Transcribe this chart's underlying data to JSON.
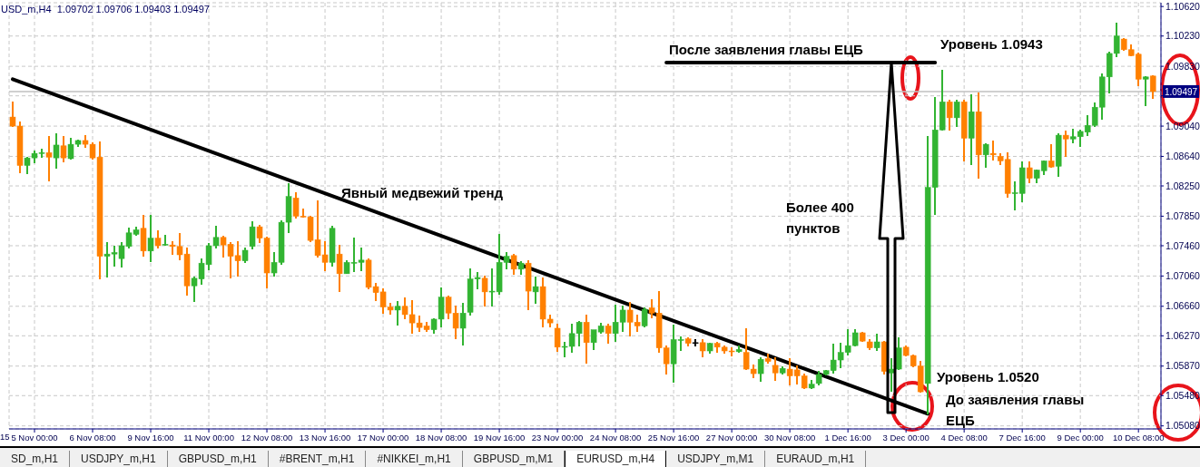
{
  "chart_data": {
    "type": "candlestick",
    "title": "USD_m,H4  1.09702 1.09706 1.09403 1.09497",
    "categories": [
      null,
      null,
      null,
      "5 Nov 00:00",
      null,
      null,
      null,
      null,
      null,
      null,
      null,
      "6 Nov 08:00",
      null,
      null,
      null,
      null,
      null,
      null,
      null,
      "9 Nov 16:00",
      null,
      null,
      null,
      null,
      null,
      null,
      null,
      "11 Nov 00:00",
      null,
      null,
      null,
      null,
      null,
      null,
      null,
      "12 Nov 08:00",
      null,
      null,
      null,
      null,
      null,
      null,
      null,
      "13 Nov 16:00",
      null,
      null,
      null,
      null,
      null,
      null,
      null,
      "17 Nov 00:00",
      null,
      null,
      null,
      null,
      null,
      null,
      null,
      "18 Nov 08:00",
      null,
      null,
      null,
      null,
      null,
      null,
      null,
      "19 Nov 16:00",
      null,
      null,
      null,
      null,
      null,
      null,
      null,
      "23 Nov 00:00",
      null,
      null,
      null,
      null,
      null,
      null,
      null,
      "24 Nov 08:00",
      null,
      null,
      null,
      null,
      null,
      null,
      null,
      "25 Nov 16:00",
      null,
      null,
      null,
      null,
      null,
      null,
      null,
      "27 Nov 00:00",
      null,
      null,
      null,
      null,
      null,
      null,
      null,
      "30 Nov 08:00",
      null,
      null,
      null,
      null,
      null,
      null,
      null,
      "1 Dec 16:00",
      null,
      null,
      null,
      null,
      null,
      null,
      null,
      "3 Dec 00:00",
      null,
      null,
      null,
      null,
      null,
      null,
      null,
      "4 Dec 08:00",
      null,
      null,
      null,
      null,
      null,
      null,
      null,
      "7 Dec 16:00",
      null,
      null,
      null,
      null,
      null,
      null,
      null,
      "9 Dec 00:00",
      null,
      null,
      null,
      null,
      null,
      null,
      null,
      "10 Dec 08:00",
      null,
      null
    ],
    "ohlc": [
      [
        1.0916,
        1.0937,
        1.0903,
        1.0904
      ],
      [
        1.0904,
        1.091,
        1.0842,
        1.0852
      ],
      [
        1.0852,
        1.0863,
        1.0841,
        1.0862
      ],
      [
        1.0862,
        1.0872,
        1.0855,
        1.0868
      ],
      [
        1.0868,
        1.0874,
        1.0862,
        1.0869
      ],
      [
        1.0869,
        1.0891,
        1.0831,
        1.0863
      ],
      [
        1.0862,
        1.0894,
        1.0848,
        1.0879
      ],
      [
        1.0878,
        1.0891,
        1.0856,
        1.0862
      ],
      [
        1.0861,
        1.0888,
        1.086,
        1.088
      ],
      [
        1.088,
        1.0886,
        1.0876,
        1.0885
      ],
      [
        1.0885,
        1.0892,
        1.0875,
        1.088
      ],
      [
        1.088,
        1.0882,
        1.086,
        1.0862
      ],
      [
        1.0863,
        1.0884,
        1.0702,
        1.0732
      ],
      [
        1.0732,
        1.0751,
        1.0704,
        1.0735
      ],
      [
        1.0735,
        1.0746,
        1.0718,
        1.0737
      ],
      [
        1.0729,
        1.0751,
        1.0717,
        1.0746
      ],
      [
        1.0745,
        1.077,
        1.0742,
        1.0763
      ],
      [
        1.0761,
        1.0771,
        1.0759,
        1.0767
      ],
      [
        1.0769,
        1.0787,
        1.0732,
        1.0739
      ],
      [
        1.0739,
        1.0787,
        1.0724,
        1.0756
      ],
      [
        1.0756,
        1.0766,
        1.0742,
        1.0746
      ],
      [
        1.0747,
        1.076,
        1.0746,
        1.0748
      ],
      [
        1.0747,
        1.0752,
        1.0734,
        1.0745
      ],
      [
        1.0745,
        1.0763,
        1.0727,
        1.0734
      ],
      [
        1.0735,
        1.0744,
        1.068,
        1.0693
      ],
      [
        1.0693,
        1.0705,
        1.0672,
        1.0703
      ],
      [
        1.0702,
        1.0729,
        1.0695,
        1.0723
      ],
      [
        1.0721,
        1.075,
        1.0714,
        1.0746
      ],
      [
        1.0746,
        1.0772,
        1.0742,
        1.0757
      ],
      [
        1.0757,
        1.0759,
        1.073,
        1.0747
      ],
      [
        1.0748,
        1.0751,
        1.0703,
        1.0732
      ],
      [
        1.0733,
        1.0752,
        1.0705,
        1.0726
      ],
      [
        1.0726,
        1.0744,
        1.0723,
        1.074
      ],
      [
        1.0745,
        1.0778,
        1.0741,
        1.0771
      ],
      [
        1.0771,
        1.0774,
        1.075,
        1.0756
      ],
      [
        1.0756,
        1.0758,
        1.069,
        1.071
      ],
      [
        1.071,
        1.0738,
        1.0705,
        1.0724
      ],
      [
        1.0724,
        1.078,
        1.0721,
        1.0777
      ],
      [
        1.0777,
        1.0829,
        1.0763,
        1.0811
      ],
      [
        1.0809,
        1.0817,
        1.0782,
        1.0785
      ],
      [
        1.0785,
        1.0795,
        1.0783,
        1.0784
      ],
      [
        1.0784,
        1.0785,
        1.0751,
        1.0753
      ],
      [
        1.0754,
        1.0806,
        1.073,
        1.0733
      ],
      [
        1.0734,
        1.0752,
        1.0712,
        1.0724
      ],
      [
        1.0724,
        1.0772,
        1.0718,
        1.0769
      ],
      [
        1.0735,
        1.0747,
        1.0685,
        1.0709
      ],
      [
        1.0709,
        1.0727,
        1.0709,
        1.0724
      ],
      [
        1.0723,
        1.0757,
        1.0711,
        1.0724
      ],
      [
        1.0724,
        1.0744,
        1.0712,
        1.0727
      ],
      [
        1.0727,
        1.0729,
        1.0688,
        1.0691
      ],
      [
        1.0692,
        1.0697,
        1.0673,
        1.0684
      ],
      [
        1.0685,
        1.069,
        1.0656,
        1.0665
      ],
      [
        1.0665,
        1.0671,
        1.0655,
        1.0661
      ],
      [
        1.0661,
        1.0673,
        1.0641,
        1.0666
      ],
      [
        1.0666,
        1.0678,
        1.0649,
        1.0655
      ],
      [
        1.0655,
        1.0674,
        1.063,
        1.0644
      ],
      [
        1.0644,
        1.0654,
        1.0632,
        1.0638
      ],
      [
        1.064,
        1.0645,
        1.0632,
        1.0635
      ],
      [
        1.0635,
        1.065,
        1.063,
        1.0649
      ],
      [
        1.0649,
        1.0691,
        1.0638,
        1.0678
      ],
      [
        1.0678,
        1.068,
        1.0649,
        1.0657
      ],
      [
        1.0657,
        1.0667,
        1.0622,
        1.0637
      ],
      [
        1.0637,
        1.0671,
        1.0614,
        1.0657
      ],
      [
        1.0658,
        1.0716,
        1.0654,
        1.0702
      ],
      [
        1.0702,
        1.0711,
        1.0688,
        1.0704
      ],
      [
        1.0703,
        1.0706,
        1.0666,
        1.0685
      ],
      [
        1.0685,
        1.0716,
        1.0666,
        1.0686
      ],
      [
        1.0685,
        1.0761,
        1.0681,
        1.0724
      ],
      [
        1.0724,
        1.0738,
        1.0715,
        1.0732
      ],
      [
        1.0733,
        1.0735,
        1.0708,
        1.0715
      ],
      [
        1.0715,
        1.0726,
        1.0708,
        1.0723
      ],
      [
        1.0723,
        1.0727,
        1.0661,
        1.0686
      ],
      [
        1.0685,
        1.0705,
        1.0669,
        1.0692
      ],
      [
        1.0692,
        1.0704,
        1.0638,
        1.0649
      ],
      [
        1.0649,
        1.0655,
        1.0638,
        1.0644
      ],
      [
        1.0637,
        1.0643,
        1.0606,
        1.0612
      ],
      [
        1.0612,
        1.0619,
        1.0599,
        1.0613
      ],
      [
        1.0613,
        1.0643,
        1.0605,
        1.063
      ],
      [
        1.063,
        1.0646,
        1.0613,
        1.0645
      ],
      [
        1.0645,
        1.0655,
        1.059,
        1.0618
      ],
      [
        1.0618,
        1.0635,
        1.0608,
        1.0635
      ],
      [
        1.0632,
        1.0644,
        1.063,
        1.064
      ],
      [
        1.064,
        1.0643,
        1.0617,
        1.063
      ],
      [
        1.063,
        1.0668,
        1.0619,
        1.0645
      ],
      [
        1.0645,
        1.0667,
        1.0632,
        1.0661
      ],
      [
        1.0661,
        1.0672,
        1.0626,
        1.0645
      ],
      [
        1.0645,
        1.0655,
        1.0632,
        1.064
      ],
      [
        1.064,
        1.0665,
        1.0638,
        1.0662
      ],
      [
        1.0664,
        1.0675,
        1.065,
        1.0657
      ],
      [
        1.0657,
        1.0686,
        1.0605,
        1.0611
      ],
      [
        1.0611,
        1.0614,
        1.0576,
        1.059
      ],
      [
        1.059,
        1.0642,
        1.0565,
        1.0622
      ],
      [
        1.0621,
        1.0626,
        1.0607,
        1.0622
      ],
      [
        1.0623,
        1.0625,
        1.0613,
        1.0617
      ],
      [
        1.0618,
        1.0623,
        1.0613,
        1.0618
      ],
      [
        1.0618,
        1.0622,
        1.0599,
        1.0607
      ],
      [
        1.0607,
        1.0618,
        1.0603,
        1.0617
      ],
      [
        1.0617,
        1.0619,
        1.0605,
        1.0612
      ],
      [
        1.0612,
        1.0614,
        1.0603,
        1.0607
      ],
      [
        1.0607,
        1.0612,
        1.06,
        1.0606
      ],
      [
        1.0606,
        1.0614,
        1.0605,
        1.0609
      ],
      [
        1.0605,
        1.0637,
        1.0582,
        1.0583
      ],
      [
        1.0583,
        1.0589,
        1.0571,
        1.0577
      ],
      [
        1.0577,
        1.0599,
        1.0566,
        1.0596
      ],
      [
        1.0597,
        1.0604,
        1.059,
        1.0593
      ],
      [
        1.0588,
        1.0599,
        1.0568,
        1.0578
      ],
      [
        1.0578,
        1.0587,
        1.0576,
        1.0584
      ],
      [
        1.0583,
        1.0597,
        1.0562,
        1.0574
      ],
      [
        1.0582,
        1.0588,
        1.0563,
        1.0574
      ],
      [
        1.0574,
        1.0577,
        1.0557,
        1.0558
      ],
      [
        1.0558,
        1.0569,
        1.0557,
        1.0563
      ],
      [
        1.0564,
        1.0581,
        1.0562,
        1.0576
      ],
      [
        1.0576,
        1.0582,
        1.0575,
        1.0581
      ],
      [
        1.0581,
        1.0617,
        1.0577,
        1.0595
      ],
      [
        1.0595,
        1.0618,
        1.0584,
        1.0605
      ],
      [
        1.0605,
        1.0636,
        1.0601,
        1.0614
      ],
      [
        1.0614,
        1.0636,
        1.0613,
        1.0631
      ],
      [
        1.0631,
        1.0632,
        1.0619,
        1.062
      ],
      [
        1.0619,
        1.0623,
        1.0608,
        1.0611
      ],
      [
        1.0611,
        1.063,
        1.0607,
        1.0619
      ],
      [
        1.0619,
        1.062,
        1.0576,
        1.058
      ],
      [
        1.0578,
        1.0597,
        1.0553,
        1.0583
      ],
      [
        1.0583,
        1.0625,
        1.0582,
        1.0611
      ],
      [
        1.0612,
        1.0614,
        1.06,
        1.0601
      ],
      [
        1.0601,
        1.0602,
        1.0586,
        1.0587
      ],
      [
        1.0587,
        1.0594,
        1.0552,
        1.0553
      ],
      [
        1.0564,
        1.0891,
        1.0523,
        1.0823
      ],
      [
        1.0823,
        1.0942,
        1.0787,
        1.0899
      ],
      [
        1.0899,
        1.0978,
        1.0898,
        1.0936
      ],
      [
        1.0936,
        1.0939,
        1.0898,
        1.0915
      ],
      [
        1.0915,
        1.0939,
        1.0903,
        1.0936
      ],
      [
        1.0936,
        1.0939,
        1.0857,
        1.0888
      ],
      [
        1.0888,
        1.0946,
        1.0852,
        1.0923
      ],
      [
        1.0923,
        1.0948,
        1.0835,
        1.0866
      ],
      [
        1.0866,
        1.0881,
        1.0849,
        1.088
      ],
      [
        1.0868,
        1.0885,
        1.0858,
        1.0866
      ],
      [
        1.0864,
        1.0868,
        1.0852,
        1.0858
      ],
      [
        1.086,
        1.0869,
        1.0809,
        1.0815
      ],
      [
        1.0815,
        1.0831,
        1.0793,
        1.0816
      ],
      [
        1.0815,
        1.0857,
        1.0803,
        1.0849
      ],
      [
        1.0849,
        1.0857,
        1.0829,
        1.0835
      ],
      [
        1.0835,
        1.0847,
        1.0829,
        1.0846
      ],
      [
        1.0845,
        1.0859,
        1.0839,
        1.0858
      ],
      [
        1.0858,
        1.088,
        1.0849,
        1.085
      ],
      [
        1.0851,
        1.0894,
        1.0837,
        1.0892
      ],
      [
        1.0892,
        1.0898,
        1.0863,
        1.0887
      ],
      [
        1.0887,
        1.09,
        1.0881,
        1.089
      ],
      [
        1.089,
        1.0899,
        1.0876,
        1.0897
      ],
      [
        1.0896,
        1.0918,
        1.0891,
        1.0905
      ],
      [
        1.0905,
        1.0935,
        1.0903,
        1.0929
      ],
      [
        1.0929,
        1.0973,
        1.0912,
        1.0969
      ],
      [
        1.0969,
        1.1002,
        1.0947,
        1.1
      ],
      [
        1.1,
        1.1041,
        1.0995,
        1.1023
      ],
      [
        1.1019,
        1.102,
        1.1004,
        1.1005
      ],
      [
        1.1005,
        1.1012,
        1.0996,
        1.0997
      ],
      [
        1.0999,
        1.1001,
        1.0957,
        1.0966
      ],
      [
        1.0966,
        1.097,
        1.093,
        1.0969
      ],
      [
        1.09702,
        1.09706,
        1.09403,
        1.09497
      ]
    ],
    "colors": [
      "#ff8000",
      "#ff8000",
      "#32b432",
      "#32b432",
      "#32b432",
      "#ff8000",
      "#32b432",
      "#ff8000",
      "#32b432",
      "#32b432",
      "#ff8000",
      "#ff8000",
      "#ff8000",
      "#32b432",
      "#32b432",
      "#32b432",
      "#32b432",
      "#32b432",
      "#ff8000",
      "#32b432",
      "#ff8000",
      "#32b432",
      "#ff8000",
      "#ff8000",
      "#ff8000",
      "#32b432",
      "#32b432",
      "#32b432",
      "#32b432",
      "#ff8000",
      "#ff8000",
      "#ff8000",
      "#32b432",
      "#32b432",
      "#ff8000",
      "#ff8000",
      "#32b432",
      "#32b432",
      "#32b432",
      "#ff8000",
      "#ff8000",
      "#ff8000",
      "#ff8000",
      "#ff8000",
      "#32b432",
      "#ff8000",
      "#32b432",
      "#32b432",
      "#32b432",
      "#ff8000",
      "#ff8000",
      "#ff8000",
      "#ff8000",
      "#32b432",
      "#ff8000",
      "#ff8000",
      "#ff8000",
      "#ff8000",
      "#32b432",
      "#32b432",
      "#ff8000",
      "#ff8000",
      "#32b432",
      "#32b432",
      "#32b432",
      "#ff8000",
      "#32b432",
      "#32b432",
      "#32b432",
      "#ff8000",
      "#32b432",
      "#ff8000",
      "#32b432",
      "#ff8000",
      "#ff8000",
      "#ff8000",
      "#32b432",
      "#32b432",
      "#32b432",
      "#ff8000",
      "#32b432",
      "#32b432",
      "#ff8000",
      "#32b432",
      "#32b432",
      "#ff8000",
      "#ff8000",
      "#32b432",
      "#ff8000",
      "#ff8000",
      "#ff8000",
      "#32b432",
      "#32b432",
      "#ff8000",
      "#000000",
      "#ff8000",
      "#32b432",
      "#ff8000",
      "#ff8000",
      "#ff8000",
      "#32b432",
      "#ff8000",
      "#ff8000",
      "#32b432",
      "#ff8000",
      "#ff8000",
      "#32b432",
      "#ff8000",
      "#ff8000",
      "#ff8000",
      "#32b432",
      "#32b432",
      "#32b432",
      "#32b432",
      "#32b432",
      "#32b432",
      "#32b432",
      "#ff8000",
      "#ff8000",
      "#32b432",
      "#ff8000",
      "#32b432",
      "#32b432",
      "#ff8000",
      "#ff8000",
      "#ff8000",
      "#32b432",
      "#32b432",
      "#32b432",
      "#ff8000",
      "#32b432",
      "#ff8000",
      "#32b432",
      "#ff8000",
      "#32b432",
      "#ff8000",
      "#ff8000",
      "#ff8000",
      "#32b432",
      "#32b432",
      "#ff8000",
      "#32b432",
      "#32b432",
      "#ff8000",
      "#32b432",
      "#ff8000",
      "#32b432",
      "#32b432",
      "#32b432",
      "#32b432",
      "#32b432",
      "#32b432",
      "#32b432",
      "#ff8000",
      "#ff8000",
      "#ff8000",
      "#32b432",
      "#ff8000"
    ],
    "series": [
      {
        "type": "line",
        "color": "#000000",
        "values": [
          1.0966,
          null,
          null,
          null,
          null,
          null,
          null,
          null,
          null,
          null,
          null,
          null,
          null,
          null,
          null,
          null,
          null,
          null,
          null,
          null,
          null,
          null,
          null,
          null,
          null,
          null,
          null,
          null,
          null,
          null,
          null,
          null,
          null,
          null,
          null,
          null,
          null,
          null,
          null,
          null,
          null,
          null,
          null,
          null,
          null,
          null,
          null,
          null,
          null,
          null,
          null,
          null,
          null,
          null,
          null,
          null,
          null,
          null,
          null,
          null,
          null,
          null,
          null,
          null,
          null,
          null,
          null,
          null,
          null,
          null,
          null,
          null,
          null,
          null,
          null,
          null,
          null,
          null,
          null,
          null,
          null,
          null,
          null,
          null,
          null,
          null,
          null,
          null,
          null,
          null,
          null,
          null,
          null,
          null,
          null,
          null,
          null,
          null,
          null,
          null,
          null,
          null,
          null,
          null,
          null,
          null,
          null,
          null,
          null,
          null,
          null,
          null,
          null,
          null,
          null,
          null,
          null,
          null,
          null,
          null,
          null,
          null,
          null,
          null,
          null,
          null,
          1.0524,
          null,
          null,
          null,
          null,
          null,
          null,
          null,
          null,
          null,
          null,
          null,
          null,
          null,
          null,
          null,
          null,
          null,
          null,
          null,
          null,
          null,
          null,
          null,
          null,
          null,
          null,
          null,
          null,
          null,
          null,
          null
        ]
      },
      {
        "type": "line",
        "color": "#000000",
        "values": [
          null,
          null,
          null,
          null,
          null,
          null,
          null,
          null,
          null,
          null,
          null,
          null,
          null,
          null,
          null,
          null,
          null,
          null,
          null,
          null,
          null,
          null,
          null,
          null,
          null,
          null,
          null,
          null,
          null,
          null,
          null,
          null,
          null,
          null,
          null,
          null,
          null,
          null,
          null,
          null,
          null,
          null,
          null,
          null,
          null,
          null,
          null,
          null,
          null,
          null,
          null,
          null,
          null,
          null,
          null,
          null,
          null,
          null,
          null,
          null,
          null,
          null,
          null,
          null,
          null,
          null,
          null,
          null,
          null,
          null,
          null,
          null,
          null,
          null,
          null,
          null,
          null,
          null,
          null,
          null,
          null,
          null,
          null,
          null,
          null,
          null,
          null,
          null,
          null,
          null,
          1.0988,
          null,
          null,
          null,
          null,
          null,
          null,
          null,
          null,
          null,
          null,
          null,
          null,
          null,
          null,
          null,
          null,
          null,
          null,
          null,
          null,
          null,
          null,
          null,
          null,
          null,
          null,
          null,
          null,
          null,
          null,
          null,
          null,
          null,
          null,
          null,
          null,
          1.0988,
          null,
          null,
          null,
          null,
          null,
          null,
          null,
          null,
          null,
          null,
          null,
          null,
          null,
          null,
          null,
          null,
          null,
          null,
          null,
          null,
          null,
          null,
          null,
          null,
          null,
          null,
          null,
          null,
          null,
          null
        ]
      }
    ],
    "ylim": [
      1.0504,
      1.1067
    ],
    "yticks": [
      {
        "value": 1.0508,
        "label": "1.05080"
      },
      {
        "value": 1.0548,
        "label": "1.05480"
      },
      {
        "value": 1.0587,
        "label": "1.05870"
      },
      {
        "value": 1.0627,
        "label": "1.06270"
      },
      {
        "value": 1.0666,
        "label": "1.06660"
      },
      {
        "value": 1.0706,
        "label": "1.07060"
      },
      {
        "value": 1.0746,
        "label": "1.07460"
      },
      {
        "value": 1.0785,
        "label": "1.07850"
      },
      {
        "value": 1.0825,
        "label": "1.08250"
      },
      {
        "value": 1.0864,
        "label": "1.08640"
      },
      {
        "value": 1.0904,
        "label": "1.09040"
      },
      {
        "value": 1.0944,
        "label": null
      },
      {
        "value": 1.0983,
        "label": "1.09830"
      },
      {
        "value": 1.1023,
        "label": "1.10230"
      },
      {
        "value": 1.1062,
        "label": "1.10620"
      }
    ],
    "grid": true,
    "ref_lines": [
      {
        "axis": "y",
        "value": 1.09497,
        "label": "1.09497",
        "color": "#c0c0c0"
      }
    ],
    "annotations": [
      "После заявления главы ЕЦБ",
      "Уровень 1.0943",
      "Явный медвежий тренд",
      "Более 400 пунктов",
      "Уровень 1.0520",
      "До заявления главы ЕЦБ",
      "15",
      "SD_m,H1",
      "USDJPY_m,H1",
      "GBPUSD_m,H1",
      "#BRENT_m,H1",
      "#NIKKEI_m,H1",
      "GBPUSD_m,M1",
      "EURUSD_m,H4",
      "USDJPY_m,M1",
      "EURAUD_m,H1"
    ]
  }
}
